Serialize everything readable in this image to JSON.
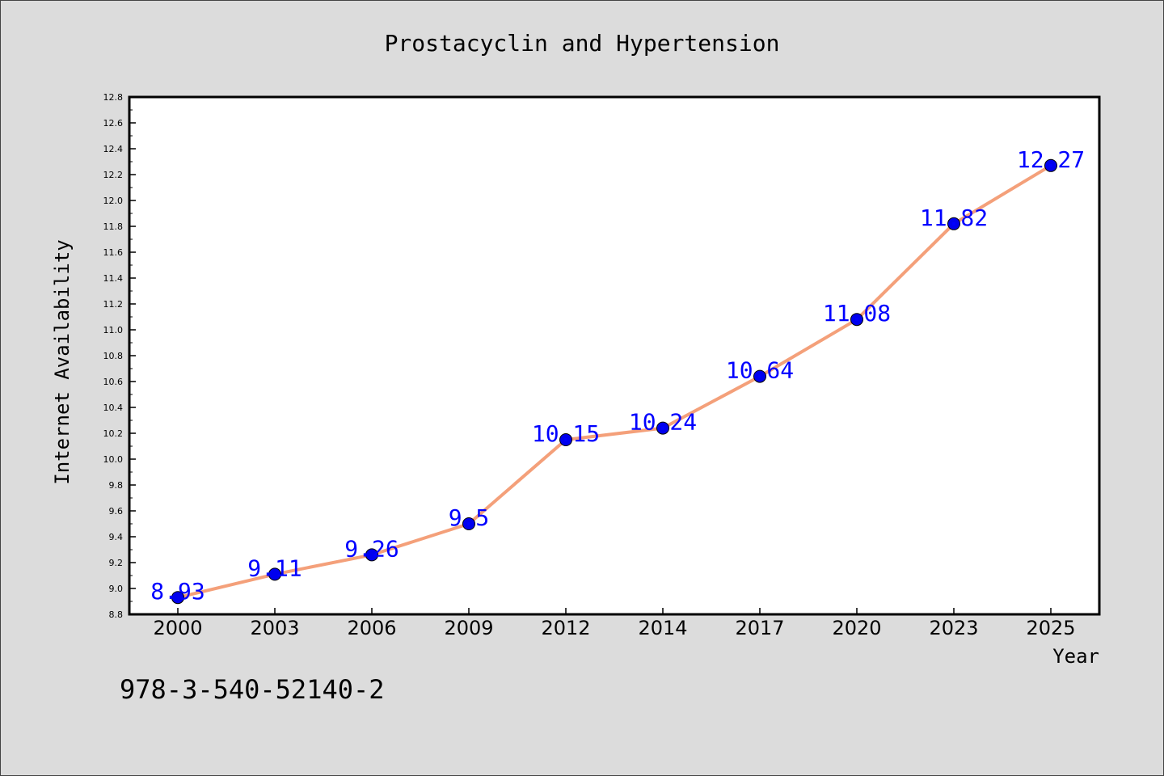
{
  "chart_data": {
    "type": "line",
    "title": "Prostacyclin and Hypertension",
    "xlabel": "Year",
    "ylabel": "Internet Availability",
    "categories": [
      "2000",
      "2003",
      "2006",
      "2009",
      "2012",
      "2014",
      "2017",
      "2020",
      "2023",
      "2025"
    ],
    "values": [
      8.93,
      9.11,
      9.26,
      9.5,
      10.15,
      10.24,
      10.64,
      11.08,
      11.82,
      12.27
    ],
    "data_labels": [
      "8.93",
      "9.11",
      "9.26",
      "9.5",
      "10.15",
      "10.24",
      "10.64",
      "11.08",
      "11.82",
      "12.27"
    ],
    "ylim": [
      8.8,
      12.8
    ],
    "yticks": [
      "8.8",
      "9.0",
      "9.2",
      "9.4",
      "9.6",
      "9.8",
      "10.0",
      "10.2",
      "10.4",
      "10.6",
      "10.8",
      "11.0",
      "11.2",
      "11.4",
      "11.6",
      "11.8",
      "12.0",
      "12.2",
      "12.4",
      "12.6",
      "12.8"
    ],
    "grid": false,
    "line_color": "#f4a07a",
    "marker_color": "#0000ee",
    "label_color": "#0000ff",
    "background": "#dcdcdc",
    "plot_background": "#ffffff"
  },
  "annotation": "978-3-540-52140-2"
}
